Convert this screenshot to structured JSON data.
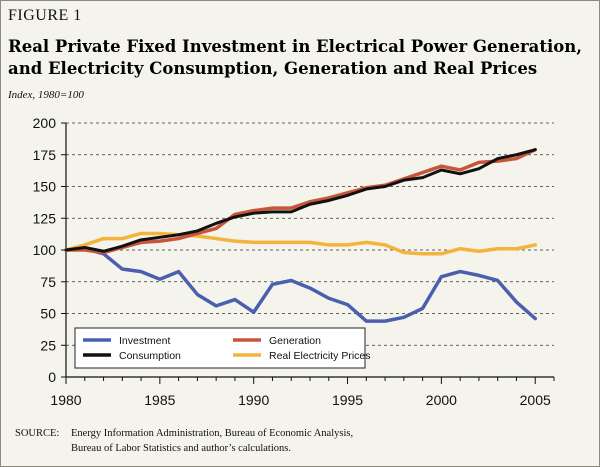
{
  "figure": {
    "label": "FIGURE 1",
    "title_line1": "Real Private Fixed Investment in Electrical Power Generation,",
    "title_line2": "and Electricity Consumption, Generation and Real Prices",
    "subtitle": "Index, 1980=100"
  },
  "source": {
    "label": "SOURCE:",
    "line1": "Energy Information Administration, Bureau of Economic Analysis,",
    "line2": "Bureau of Labor Statistics and author’s calculations."
  },
  "chart_data": {
    "type": "line",
    "title": "Real Private Fixed Investment in Electrical Power Generation, and Electricity Consumption, Generation and Real Prices",
    "subtitle": "Index, 1980=100",
    "xlabel": "",
    "ylabel": "",
    "xlim": [
      1980,
      2006
    ],
    "ylim": [
      0,
      200
    ],
    "x_ticks": [
      1980,
      1985,
      1990,
      1995,
      2000,
      2005
    ],
    "y_ticks": [
      0,
      25,
      50,
      75,
      100,
      125,
      150,
      175,
      200
    ],
    "grid": "horizontal dashed",
    "legend_position": "bottom-left",
    "x": [
      1980,
      1981,
      1982,
      1983,
      1984,
      1985,
      1986,
      1987,
      1988,
      1989,
      1990,
      1991,
      1992,
      1993,
      1994,
      1995,
      1996,
      1997,
      1998,
      1999,
      2000,
      2001,
      2002,
      2003,
      2004,
      2005
    ],
    "series": [
      {
        "name": "Investment",
        "color": "#4a5fb0",
        "values": [
          100,
          101,
          97,
          85,
          83,
          77,
          83,
          65,
          56,
          61,
          51,
          73,
          76,
          70,
          62,
          57,
          44,
          44,
          47,
          54,
          79,
          83,
          80,
          76,
          59,
          46
        ]
      },
      {
        "name": "Generation",
        "color": "#c8553a",
        "values": [
          100,
          100,
          98,
          102,
          106,
          107,
          109,
          113,
          117,
          128,
          131,
          133,
          133,
          138,
          141,
          145,
          149,
          151,
          156,
          161,
          166,
          163,
          169,
          170,
          172,
          179
        ]
      },
      {
        "name": "Consumption",
        "color": "#111111",
        "values": [
          100,
          102,
          99,
          103,
          108,
          110,
          112,
          115,
          121,
          126,
          129,
          130,
          130,
          136,
          139,
          143,
          148,
          150,
          155,
          157,
          163,
          160,
          164,
          172,
          175,
          179
        ]
      },
      {
        "name": "Real Electricity Prices",
        "color": "#f2b43c",
        "values": [
          100,
          104,
          109,
          109,
          113,
          113,
          112,
          111,
          109,
          107,
          106,
          106,
          106,
          106,
          104,
          104,
          106,
          104,
          98,
          97,
          97,
          101,
          99,
          101,
          101,
          104
        ]
      }
    ]
  }
}
